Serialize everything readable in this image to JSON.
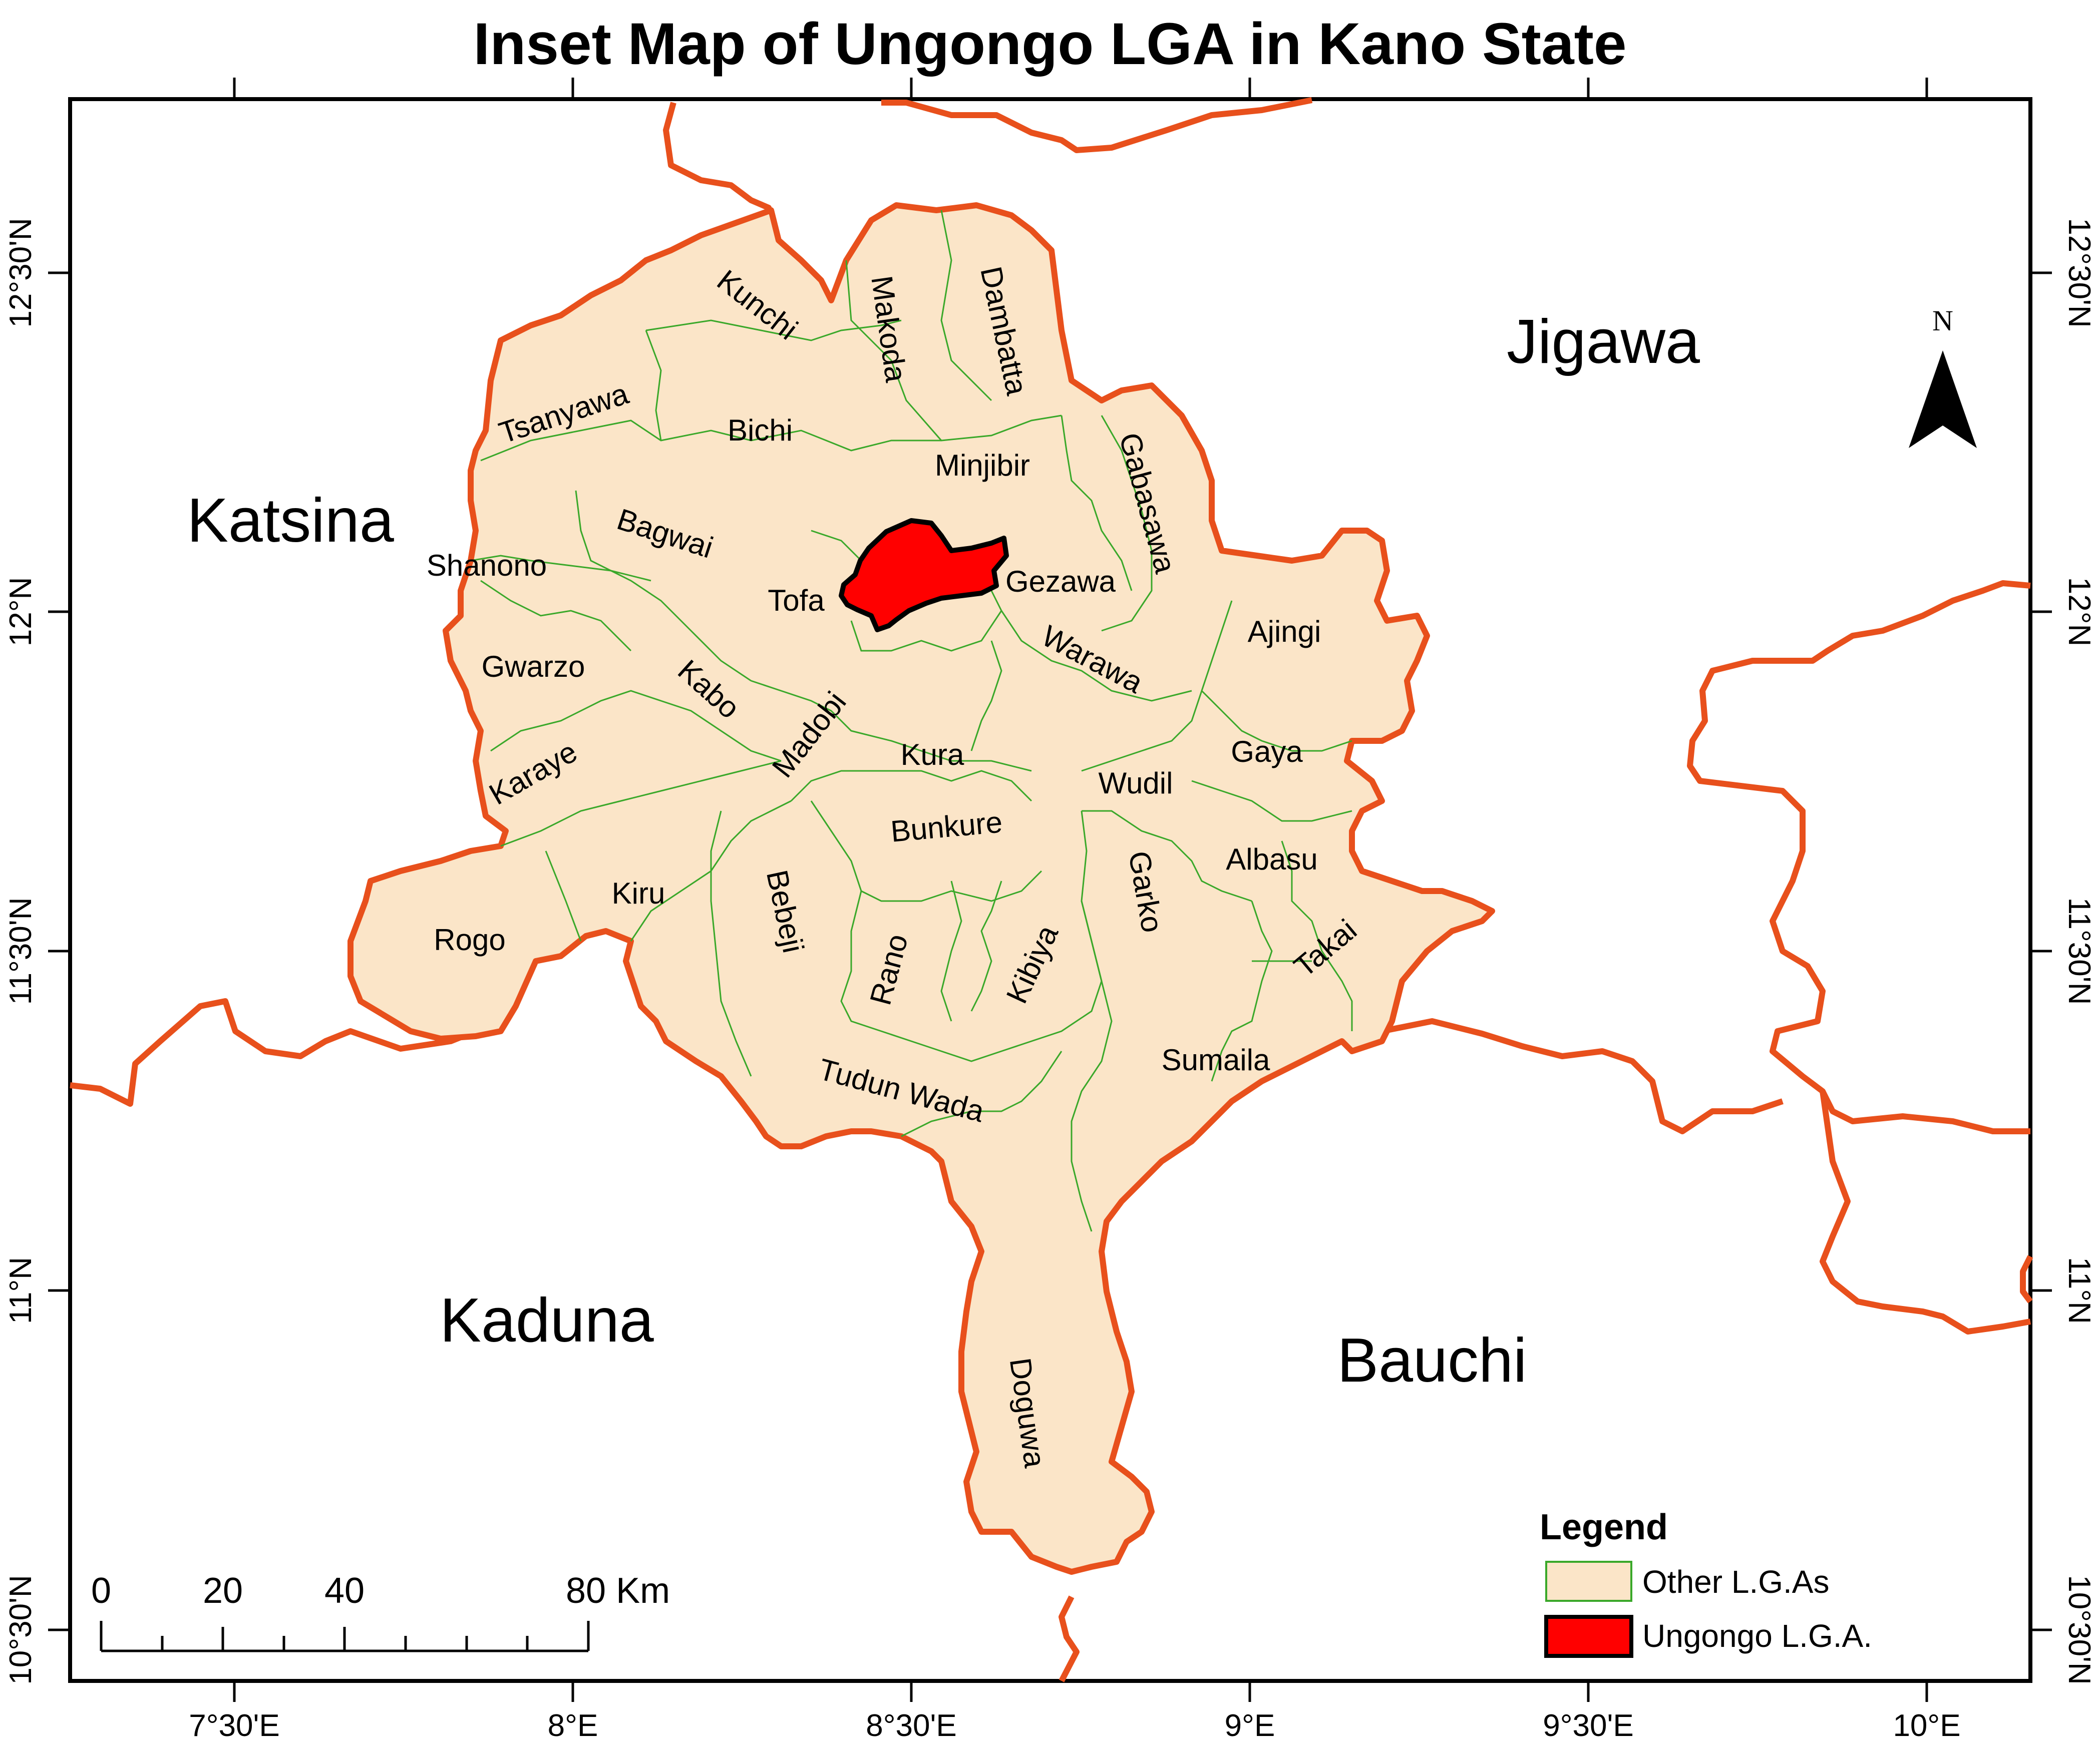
{
  "title": "Inset Map of Ungongo LGA  in Kano State",
  "colors": {
    "kano_fill": "#fbe5c8",
    "lga_boundary": "#3aa82a",
    "state_boundary": "#e8501c",
    "ungongo_fill": "#ff0000",
    "frame": "#000000"
  },
  "neighbours": {
    "katsina": "Katsina",
    "jigawa": "Jigawa",
    "kaduna": "Kaduna",
    "bauchi": "Bauchi"
  },
  "lgas": {
    "kunchi": "Kunchi",
    "makoda": "Makoda",
    "dambatta": "Dambatta",
    "tsanyawa": "Tsanyawa",
    "bichi": "Bichi",
    "minjibir": "Minjibir",
    "gabasawa": "Gabasawa",
    "shanono": "Shanono",
    "bagwai": "Bagwai",
    "tofa": "Tofa",
    "gezawa": "Gezawa",
    "ajingi": "Ajingi",
    "gwarzo": "Gwarzo",
    "kabo": "Kabo",
    "madobi": "Madobi",
    "warawa": "Warawa",
    "kura": "Kura",
    "gaya": "Gaya",
    "karaye": "Karaye",
    "wudil": "Wudil",
    "bunkure": "Bunkure",
    "albasu": "Albasu",
    "kiru": "Kiru",
    "bebeji": "Bebeji",
    "garko": "Garko",
    "rogo": "Rogo",
    "takai": "Takai",
    "rano": "Rano",
    "kibiya": "Kibiya",
    "sumaila": "Sumaila",
    "tudun_wada": "Tudun Wada",
    "doguwa": "Doguwa"
  },
  "axes": {
    "longitude_ticks": [
      "7°30'E",
      "8°E",
      "8°30'E",
      "9°E",
      "9°30'E",
      "10°E"
    ],
    "latitude_ticks": [
      "12°30'N",
      "12°N",
      "11°30'N",
      "11°N",
      "10°30'N"
    ]
  },
  "legend": {
    "title": "Legend",
    "items": [
      {
        "label": "Other L.G.As"
      },
      {
        "label": "Ungongo L.G.A."
      }
    ]
  },
  "scale_bar": {
    "labels": [
      "0",
      "20",
      "40",
      "80 Km"
    ]
  },
  "north_arrow": {
    "label": "N"
  }
}
